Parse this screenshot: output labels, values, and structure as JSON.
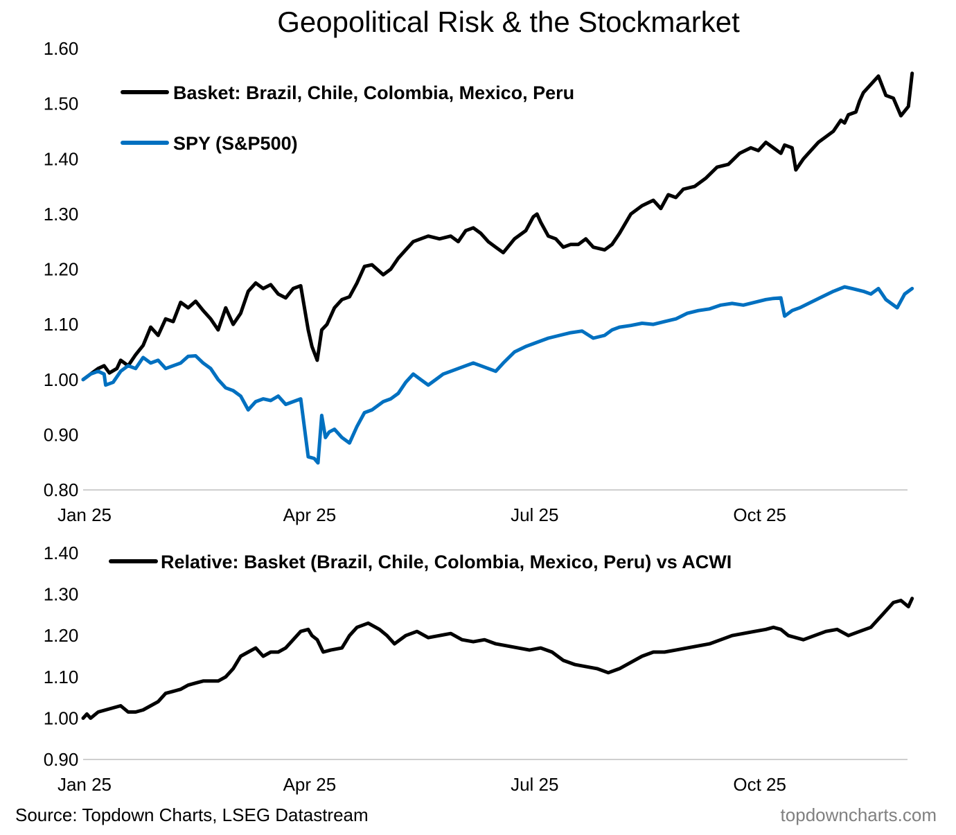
{
  "colors": {
    "basket": "#000000",
    "spy": "#0070C0",
    "relative": "#000000",
    "brand": "#808080"
  },
  "footer": {
    "source": "Source: Topdown Charts, LSEG Datastream",
    "brand": "topdowncharts.com"
  },
  "chart_data": [
    {
      "type": "line",
      "title": "Geopolitical Risk & the Stockmarket",
      "xlabel": "",
      "ylabel": "",
      "x_ticks": [
        "Jan 25",
        "Apr 25",
        "Jul 25",
        "Oct 25"
      ],
      "x_tick_positions": [
        0,
        3,
        6,
        9
      ],
      "x_range": [
        0,
        11.05
      ],
      "ylim": [
        0.8,
        1.6
      ],
      "y_ticks": [
        "0.80",
        "0.90",
        "1.00",
        "1.10",
        "1.20",
        "1.30",
        "1.40",
        "1.50",
        "1.60"
      ],
      "grid": false,
      "legend": "top-left",
      "series": [
        {
          "name": "Basket: Brazil, Chile, Colombia, Mexico, Peru",
          "color": "#000000",
          "x": [
            0,
            0.1,
            0.2,
            0.28,
            0.35,
            0.45,
            0.5,
            0.6,
            0.7,
            0.8,
            0.9,
            1.0,
            1.1,
            1.2,
            1.3,
            1.4,
            1.5,
            1.6,
            1.7,
            1.8,
            1.9,
            2.0,
            2.1,
            2.2,
            2.3,
            2.4,
            2.5,
            2.6,
            2.7,
            2.8,
            2.9,
            3.0,
            3.05,
            3.12,
            3.18,
            3.25,
            3.35,
            3.45,
            3.55,
            3.65,
            3.75,
            3.85,
            4.0,
            4.1,
            4.2,
            4.3,
            4.4,
            4.5,
            4.6,
            4.75,
            4.9,
            5.0,
            5.1,
            5.2,
            5.3,
            5.4,
            5.5,
            5.6,
            5.75,
            5.9,
            6.0,
            6.05,
            6.1,
            6.2,
            6.3,
            6.4,
            6.5,
            6.6,
            6.7,
            6.8,
            6.95,
            7.05,
            7.15,
            7.3,
            7.45,
            7.6,
            7.7,
            7.8,
            7.9,
            8.0,
            8.15,
            8.3,
            8.45,
            8.6,
            8.75,
            8.9,
            9.0,
            9.1,
            9.2,
            9.3,
            9.35,
            9.45,
            9.5,
            9.6,
            9.7,
            9.8,
            9.9,
            10.0,
            10.1,
            10.15,
            10.2,
            10.3,
            10.35,
            10.4,
            10.5,
            10.6,
            10.7,
            10.8,
            10.9,
            11.0,
            11.05
          ],
          "values": [
            1.0,
            1.01,
            1.02,
            1.025,
            1.012,
            1.02,
            1.035,
            1.025,
            1.045,
            1.062,
            1.095,
            1.08,
            1.11,
            1.105,
            1.14,
            1.13,
            1.142,
            1.125,
            1.11,
            1.09,
            1.13,
            1.1,
            1.12,
            1.16,
            1.175,
            1.165,
            1.172,
            1.155,
            1.148,
            1.165,
            1.17,
            1.09,
            1.06,
            1.035,
            1.09,
            1.1,
            1.13,
            1.145,
            1.15,
            1.175,
            1.205,
            1.208,
            1.19,
            1.2,
            1.22,
            1.235,
            1.25,
            1.255,
            1.26,
            1.255,
            1.26,
            1.25,
            1.27,
            1.275,
            1.265,
            1.25,
            1.24,
            1.23,
            1.255,
            1.27,
            1.295,
            1.3,
            1.285,
            1.26,
            1.255,
            1.24,
            1.245,
            1.245,
            1.255,
            1.24,
            1.235,
            1.245,
            1.265,
            1.3,
            1.315,
            1.325,
            1.31,
            1.335,
            1.33,
            1.345,
            1.35,
            1.365,
            1.385,
            1.39,
            1.41,
            1.42,
            1.415,
            1.43,
            1.42,
            1.41,
            1.425,
            1.42,
            1.38,
            1.4,
            1.415,
            1.43,
            1.44,
            1.45,
            1.47,
            1.465,
            1.48,
            1.485,
            1.505,
            1.52,
            1.535,
            1.55,
            1.515,
            1.51,
            1.478,
            1.495,
            1.555
          ]
        },
        {
          "name": "SPY (S&P500)",
          "color": "#0070C0",
          "x": [
            0,
            0.1,
            0.2,
            0.28,
            0.3,
            0.4,
            0.5,
            0.6,
            0.7,
            0.8,
            0.9,
            1.0,
            1.1,
            1.2,
            1.3,
            1.4,
            1.5,
            1.6,
            1.7,
            1.8,
            1.9,
            2.0,
            2.1,
            2.2,
            2.3,
            2.4,
            2.5,
            2.6,
            2.7,
            2.8,
            2.9,
            3.0,
            3.08,
            3.13,
            3.18,
            3.23,
            3.28,
            3.35,
            3.45,
            3.55,
            3.65,
            3.75,
            3.85,
            4.0,
            4.1,
            4.2,
            4.3,
            4.4,
            4.5,
            4.6,
            4.7,
            4.8,
            4.9,
            5.0,
            5.1,
            5.2,
            5.3,
            5.4,
            5.5,
            5.6,
            5.75,
            5.9,
            6.0,
            6.1,
            6.2,
            6.35,
            6.5,
            6.65,
            6.8,
            6.95,
            7.05,
            7.15,
            7.3,
            7.45,
            7.6,
            7.75,
            7.9,
            8.05,
            8.2,
            8.35,
            8.5,
            8.65,
            8.8,
            8.95,
            9.1,
            9.2,
            9.3,
            9.35,
            9.45,
            9.55,
            9.7,
            9.85,
            10.0,
            10.15,
            10.25,
            10.4,
            10.5,
            10.6,
            10.7,
            10.85,
            10.95,
            11.05
          ],
          "values": [
            1.0,
            1.01,
            1.015,
            1.01,
            0.99,
            0.995,
            1.015,
            1.025,
            1.02,
            1.04,
            1.03,
            1.035,
            1.02,
            1.025,
            1.03,
            1.042,
            1.043,
            1.03,
            1.02,
            1.0,
            0.985,
            0.98,
            0.97,
            0.945,
            0.96,
            0.965,
            0.962,
            0.97,
            0.955,
            0.96,
            0.965,
            0.86,
            0.857,
            0.849,
            0.935,
            0.895,
            0.905,
            0.91,
            0.895,
            0.885,
            0.915,
            0.94,
            0.945,
            0.96,
            0.965,
            0.975,
            0.995,
            1.01,
            1.0,
            0.99,
            1.0,
            1.01,
            1.015,
            1.02,
            1.025,
            1.03,
            1.025,
            1.02,
            1.015,
            1.03,
            1.05,
            1.06,
            1.065,
            1.07,
            1.075,
            1.08,
            1.085,
            1.088,
            1.075,
            1.08,
            1.09,
            1.095,
            1.098,
            1.102,
            1.1,
            1.105,
            1.11,
            1.12,
            1.125,
            1.128,
            1.135,
            1.138,
            1.135,
            1.14,
            1.145,
            1.147,
            1.148,
            1.115,
            1.125,
            1.13,
            1.14,
            1.15,
            1.16,
            1.168,
            1.165,
            1.16,
            1.155,
            1.165,
            1.145,
            1.13,
            1.155,
            1.165
          ]
        }
      ]
    },
    {
      "type": "line",
      "title": "",
      "xlabel": "",
      "ylabel": "",
      "x_ticks": [
        "Jan 25",
        "Apr 25",
        "Jul 25",
        "Oct 25"
      ],
      "x_tick_positions": [
        0,
        3,
        6,
        9
      ],
      "x_range": [
        0,
        11.05
      ],
      "ylim": [
        0.9,
        1.4
      ],
      "y_ticks": [
        "0.90",
        "1.00",
        "1.10",
        "1.20",
        "1.30",
        "1.40"
      ],
      "grid": false,
      "legend": "top",
      "series": [
        {
          "name": "Relative: Basket (Brazil, Chile, Colombia, Mexico, Peru) vs ACWI",
          "color": "#000000",
          "x": [
            0,
            0.05,
            0.1,
            0.2,
            0.3,
            0.4,
            0.5,
            0.6,
            0.7,
            0.8,
            0.9,
            1.0,
            1.1,
            1.2,
            1.3,
            1.4,
            1.5,
            1.6,
            1.7,
            1.8,
            1.9,
            2.0,
            2.1,
            2.2,
            2.3,
            2.4,
            2.5,
            2.6,
            2.7,
            2.8,
            2.9,
            3.0,
            3.05,
            3.12,
            3.2,
            3.3,
            3.45,
            3.55,
            3.65,
            3.8,
            3.95,
            4.05,
            4.15,
            4.3,
            4.45,
            4.6,
            4.75,
            4.9,
            5.05,
            5.2,
            5.35,
            5.5,
            5.65,
            5.8,
            5.95,
            6.1,
            6.25,
            6.4,
            6.55,
            6.7,
            6.85,
            7.0,
            7.15,
            7.3,
            7.45,
            7.6,
            7.75,
            7.9,
            8.05,
            8.2,
            8.35,
            8.5,
            8.65,
            8.8,
            8.95,
            9.1,
            9.2,
            9.3,
            9.4,
            9.5,
            9.6,
            9.75,
            9.9,
            10.05,
            10.2,
            10.35,
            10.5,
            10.65,
            10.8,
            10.9,
            11.0,
            11.05
          ],
          "values": [
            1.0,
            1.01,
            1.0,
            1.015,
            1.02,
            1.025,
            1.03,
            1.015,
            1.015,
            1.02,
            1.03,
            1.04,
            1.06,
            1.065,
            1.07,
            1.08,
            1.085,
            1.09,
            1.09,
            1.09,
            1.1,
            1.12,
            1.15,
            1.16,
            1.17,
            1.15,
            1.16,
            1.16,
            1.17,
            1.19,
            1.21,
            1.215,
            1.2,
            1.19,
            1.16,
            1.165,
            1.17,
            1.2,
            1.22,
            1.23,
            1.215,
            1.2,
            1.18,
            1.2,
            1.21,
            1.195,
            1.2,
            1.205,
            1.19,
            1.185,
            1.19,
            1.18,
            1.175,
            1.17,
            1.165,
            1.17,
            1.16,
            1.14,
            1.13,
            1.125,
            1.12,
            1.11,
            1.12,
            1.135,
            1.15,
            1.16,
            1.16,
            1.165,
            1.17,
            1.175,
            1.18,
            1.19,
            1.2,
            1.205,
            1.21,
            1.215,
            1.22,
            1.215,
            1.2,
            1.195,
            1.19,
            1.2,
            1.21,
            1.215,
            1.2,
            1.21,
            1.22,
            1.25,
            1.28,
            1.285,
            1.27,
            1.29
          ]
        }
      ]
    }
  ]
}
